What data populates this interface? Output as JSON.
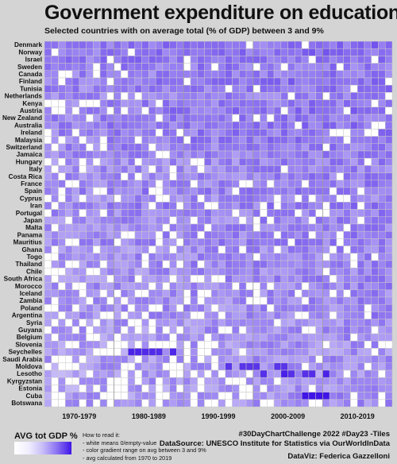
{
  "title": "Government expenditure on education",
  "subtitle": "Selected countries with on average total (% of GDP) between 3 and 9%",
  "colors": {
    "background": "#d4d4d4",
    "low": "#ffffff",
    "high": "#3f14e6",
    "grid": "#c8c8c8"
  },
  "chart_data": {
    "type": "heatmap",
    "title": "Government expenditure on education",
    "x_start": 1970,
    "x_end": 2019,
    "x_tick_labels": [
      "1970-1979",
      "1980-1989",
      "1990-1999",
      "2000-2009",
      "2010-2019"
    ],
    "countries": [
      "Denmark",
      "Norway",
      "Israel",
      "Sweden",
      "Canada",
      "Finland",
      "Tunisia",
      "Netherlands",
      "Kenya",
      "Austria",
      "New Zealand",
      "Australia",
      "Ireland",
      "Malaysia",
      "Switzerland",
      "Jamaica",
      "Hungary",
      "Italy",
      "Costa Rica",
      "France",
      "Spain",
      "Cyprus",
      "Iran",
      "Portugal",
      "Japan",
      "Malta",
      "Panama",
      "Mauritius",
      "Ghana",
      "Togo",
      "Thailand",
      "Chile",
      "South Africa",
      "Morocco",
      "Iceland",
      "Zambia",
      "Poland",
      "Argentina",
      "Syria",
      "Guyana",
      "Belgium",
      "Slovenia",
      "Seychelles",
      "Saudi Arabia",
      "Moldova",
      "Lesotho",
      "Kyrgyzstan",
      "Estonia",
      "Cuba",
      "Botswana"
    ],
    "avg_range": [
      3,
      9
    ],
    "note": "white means 0/empty-value"
  },
  "legend": {
    "title": "AVG tot GDP %"
  },
  "howto": {
    "heading": "How to read it:",
    "line1": "- white means 0/empty-value",
    "line2": "- color gradient range on avg between 3 and 9%",
    "line3": "- avg calculated from 1970 to 2019"
  },
  "credits": {
    "hashtag": "#30DayChartChallenge 2022 #Day23 -Tiles",
    "source": "DataSource: UNESCO Institute for Statistics via OurWorldInData",
    "author": "DataViz: Federica Gazzelloni"
  }
}
